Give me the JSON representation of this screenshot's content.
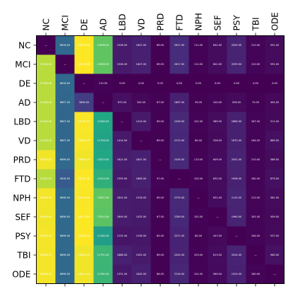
{
  "chart_data": {
    "type": "heatmap",
    "title": "",
    "xlabel": "",
    "ylabel": "",
    "labels": [
      "NC",
      "MCI",
      "DE",
      "AD",
      "LBD",
      "VD",
      "PRD",
      "FTD",
      "NPH",
      "SEF",
      "PSY",
      "TBI",
      "ODE"
    ],
    "colormap": "viridis",
    "grid": false,
    "cell_text_format": "2 decimals",
    "values": [
      [
        null,
        6818,
        16197,
        13638,
        1528,
        1847,
        89,
        2617,
        111,
        641,
        2059,
        210,
        591
      ],
      [
        15184,
        null,
        16197,
        13638,
        1528,
        1847,
        89,
        2617,
        111,
        641,
        2059,
        210,
        591
      ],
      [
        15184,
        6818,
        null,
        110,
        0,
        0,
        0,
        0,
        0,
        0,
        0,
        0,
        0
      ],
      [
        15184,
        6807,
        3606,
        null,
        872,
        342,
        87,
        1867,
        35,
        240,
        526,
        74,
        404
      ],
      [
        15184,
        6807,
        16120,
        12064,
        null,
        1415,
        89,
        2426,
        101,
        589,
        1860,
        187,
        511
      ],
      [
        15184,
        6807,
        16093,
        11756,
        1414,
        null,
        89,
        2270,
        80,
        526,
        1870,
        164,
        889
      ],
      [
        16023,
        6896,
        16020,
        12023,
        1621,
        1847,
        null,
        2426,
        113,
        609,
        2051,
        210,
        588
      ],
      [
        15167,
        5818,
        16171,
        12514,
        1393,
        1865,
        97,
        null,
        102,
        632,
        1906,
        182,
        879
      ],
      [
        16048,
        6898,
        16134,
        13637,
        1601,
        1518,
        89,
        2379,
        null,
        631,
        2110,
        212,
        581
      ],
      [
        16000,
        6898,
        16177,
        13520,
        1609,
        1432,
        87,
        2289,
        101,
        null,
        1960,
        181,
        509
      ],
      [
        16059,
        6896,
        16193,
        11264,
        1232,
        1258,
        85,
        2071,
        80,
        447,
        null,
        164,
        537
      ],
      [
        16058,
        6896,
        16018,
        12791,
        1888,
        1501,
        89,
        2000,
        103,
        613,
        2024,
        null,
        960
      ],
      [
        16058,
        6896,
        16021,
        12760,
        1331,
        1845,
        86,
        2216,
        101,
        569,
        1915,
        180,
        null
      ]
    ]
  }
}
